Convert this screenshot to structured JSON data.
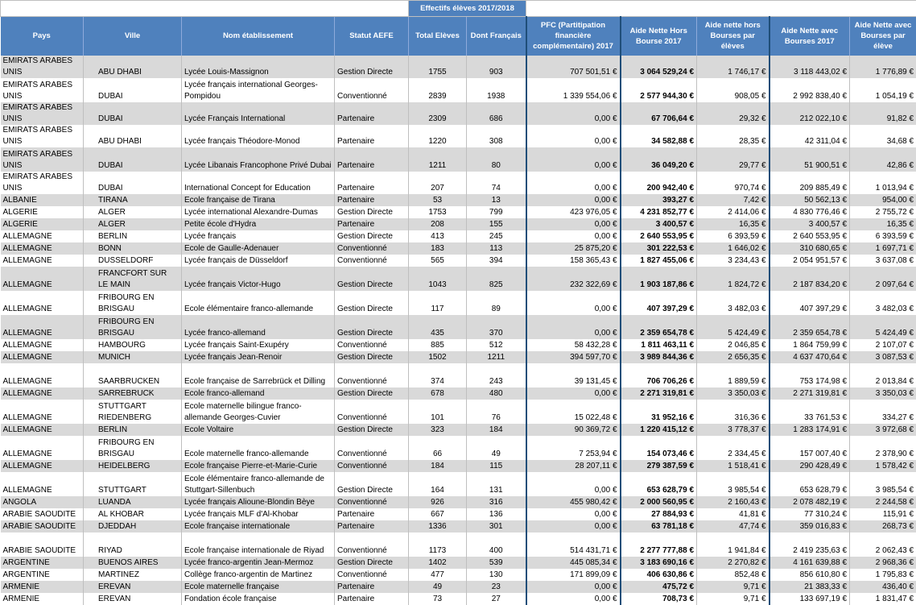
{
  "table": {
    "group_header": "Effectifs élèves 2017/2018",
    "columns": [
      "Pays",
      "Ville",
      "Nom établissement",
      "Statut AEFE",
      "Total Elèves",
      "Dont Français",
      "PFC (Partitipation financière complémentaire) 2017",
      "Aide Nette Hors Bourse 2017",
      "Aide nette hors Bourses par élèves",
      "Aide Nette avec Bourses 2017",
      "Aide Nette avec Bourses par élève"
    ],
    "rows": [
      [
        "EMIRATS ARABES UNIS",
        "ABU DHABI",
        "Lycée Louis-Massignon",
        "Gestion Directe",
        1755,
        903,
        "707 501,51 €",
        "3 064 529,24 €",
        "1 746,17 €",
        "3 118 443,02 €",
        "1 776,89 €"
      ],
      [
        "EMIRATS ARABES UNIS",
        "DUBAI",
        "Lycée français international Georges-Pompidou",
        "Conventionné",
        2839,
        1938,
        "1 339 554,06 €",
        "2 577 944,30 €",
        "908,05 €",
        "2 992 838,40 €",
        "1 054,19 €"
      ],
      [
        "EMIRATS ARABES UNIS",
        "DUBAI",
        "Lycée Français International",
        "Partenaire",
        2309,
        686,
        "0,00 €",
        "67 706,64 €",
        "29,32 €",
        "212 022,10 €",
        "91,82 €"
      ],
      [
        "EMIRATS ARABES UNIS",
        "ABU DHABI",
        "Lycée français Théodore-Monod",
        "Partenaire",
        1220,
        308,
        "0,00 €",
        "34 582,88 €",
        "28,35 €",
        "42 311,04 €",
        "34,68 €"
      ],
      [
        "EMIRATS ARABES UNIS",
        "DUBAI",
        "Lycée Libanais Francophone Privé Dubai",
        "Partenaire",
        1211,
        80,
        "0,00 €",
        "36 049,20 €",
        "29,77 €",
        "51 900,51 €",
        "42,86 €"
      ],
      [
        "EMIRATS ARABES UNIS",
        "DUBAI",
        "International Concept for Education",
        "Partenaire",
        207,
        74,
        "0,00 €",
        "200 942,40 €",
        "970,74 €",
        "209 885,49 €",
        "1 013,94 €"
      ],
      [
        "ALBANIE",
        "TIRANA",
        "Ecole française de Tirana",
        "Partenaire",
        53,
        13,
        "0,00 €",
        "393,27 €",
        "7,42 €",
        "50 562,13 €",
        "954,00 €"
      ],
      [
        "ALGERIE",
        "ALGER",
        "Lycée international Alexandre-Dumas",
        "Gestion Directe",
        1753,
        799,
        "423 976,05 €",
        "4 231 852,77 €",
        "2 414,06 €",
        "4 830 776,46 €",
        "2 755,72 €"
      ],
      [
        "ALGERIE",
        "ALGER",
        "Petite école d'Hydra",
        "Partenaire",
        208,
        155,
        "0,00 €",
        "3 400,57 €",
        "16,35 €",
        "3 400,57 €",
        "16,35 €"
      ],
      [
        "ALLEMAGNE",
        "BERLIN",
        "Lycée français",
        "Gestion Directe",
        413,
        245,
        "0,00 €",
        "2 640 553,95 €",
        "6 393,59 €",
        "2 640 553,95 €",
        "6 393,59 €"
      ],
      [
        "ALLEMAGNE",
        "BONN",
        "Ecole de Gaulle-Adenauer",
        "Conventionné",
        183,
        113,
        "25 875,20 €",
        "301 222,53 €",
        "1 646,02 €",
        "310 680,65 €",
        "1 697,71 €"
      ],
      [
        "ALLEMAGNE",
        "DUSSELDORF",
        "Lycée français de Düsseldorf",
        "Conventionné",
        565,
        394,
        "158 365,43 €",
        "1 827 455,06 €",
        "3 234,43 €",
        "2 054 951,57 €",
        "3 637,08 €"
      ],
      [
        "ALLEMAGNE",
        "FRANCFORT SUR LE MAIN",
        "Lycée français Victor-Hugo",
        "Gestion Directe",
        1043,
        825,
        "232 322,69 €",
        "1 903 187,86 €",
        "1 824,72 €",
        "2 187 834,20 €",
        "2 097,64 €"
      ],
      [
        "ALLEMAGNE",
        "FRIBOURG EN BRISGAU",
        "Ecole élémentaire franco-allemande",
        "Gestion Directe",
        117,
        89,
        "0,00 €",
        "407 397,29 €",
        "3 482,03 €",
        "407 397,29 €",
        "3 482,03 €"
      ],
      [
        "ALLEMAGNE",
        "FRIBOURG EN BRISGAU",
        "Lycée franco-allemand",
        "Gestion Directe",
        435,
        370,
        "0,00 €",
        "2 359 654,78 €",
        "5 424,49 €",
        "2 359 654,78 €",
        "5 424,49 €"
      ],
      [
        "ALLEMAGNE",
        "HAMBOURG",
        "Lycée français Saint-Exupéry",
        "Conventionné",
        885,
        512,
        "58 432,28 €",
        "1 811 463,11 €",
        "2 046,85 €",
        "1 864 759,99 €",
        "2 107,07 €"
      ],
      [
        "ALLEMAGNE",
        "MUNICH",
        "Lycée français Jean-Renoir",
        "Gestion Directe",
        1502,
        1211,
        "394 597,70 €",
        "3 989 844,36 €",
        "2 656,35 €",
        "4 637 470,64 €",
        "3 087,53 €"
      ],
      [
        "ALLEMAGNE",
        "SAARBRUCKEN",
        "Ecole française de Sarrebrück et Dilling",
        "Conventionné",
        374,
        243,
        "39 131,45 €",
        "706 706,26 €",
        "1 889,59 €",
        "753 174,98 €",
        "2 013,84 €"
      ],
      [
        "ALLEMAGNE",
        "SARREBRUCK",
        "Ecole franco-allemand",
        "Gestion Directe",
        678,
        480,
        "0,00 €",
        "2 271 319,81 €",
        "3 350,03 €",
        "2 271 319,81 €",
        "3 350,03 €"
      ],
      [
        "ALLEMAGNE",
        "STUTTGART RIEDENBERG",
        "Ecole maternelle bilingue franco-allemande Georges-Cuvier",
        "Conventionné",
        101,
        76,
        "15 022,48 €",
        "31 952,16 €",
        "316,36 €",
        "33 761,53 €",
        "334,27 €"
      ],
      [
        "ALLEMAGNE",
        "BERLIN",
        "Ecole Voltaire",
        "Gestion Directe",
        323,
        184,
        "90 369,72 €",
        "1 220 415,12 €",
        "3 778,37 €",
        "1 283 174,91 €",
        "3 972,68 €"
      ],
      [
        "ALLEMAGNE",
        "FRIBOURG EN BRISGAU",
        "Ecole maternelle franco-allemande",
        "Conventionné",
        66,
        49,
        "7 253,94 €",
        "154 073,46 €",
        "2 334,45 €",
        "157 007,40 €",
        "2 378,90 €"
      ],
      [
        "ALLEMAGNE",
        "HEIDELBERG",
        "Ecole française Pierre-et-Marie-Curie",
        "Conventionné",
        184,
        115,
        "28 207,11 €",
        "279 387,59 €",
        "1 518,41 €",
        "290 428,49 €",
        "1 578,42 €"
      ],
      [
        "ALLEMAGNE",
        "STUTTGART",
        "Ecole élémentaire franco-allemande de Stuttgart-Sillenbuch",
        "Gestion Directe",
        164,
        131,
        "0,00 €",
        "653 628,79 €",
        "3 985,54 €",
        "653 628,79 €",
        "3 985,54 €"
      ],
      [
        "ANGOLA",
        "LUANDA",
        "Lycée français Alioune-Blondin Bèye",
        "Conventionné",
        926,
        316,
        "455 980,42 €",
        "2 000 560,95 €",
        "2 160,43 €",
        "2 078 482,19 €",
        "2 244,58 €"
      ],
      [
        "ARABIE SAOUDITE",
        "AL KHOBAR",
        "Lycée français MLF d'Al-Khobar",
        "Partenaire",
        667,
        136,
        "0,00 €",
        "27 884,93 €",
        "41,81 €",
        "77 310,24 €",
        "115,91 €"
      ],
      [
        "ARABIE SAOUDITE",
        "DJEDDAH",
        "Ecole française internationale",
        "Partenaire",
        1336,
        301,
        "0,00 €",
        "63 781,18 €",
        "47,74 €",
        "359 016,83 €",
        "268,73 €"
      ],
      [
        "ARABIE SAOUDITE",
        "RIYAD",
        "Ecole française internationale de Riyad",
        "Conventionné",
        1173,
        400,
        "514 431,71 €",
        "2 277 777,88 €",
        "1 941,84 €",
        "2 419 235,63 €",
        "2 062,43 €"
      ],
      [
        "ARGENTINE",
        "BUENOS AIRES",
        "Lycée franco-argentin Jean-Mermoz",
        "Gestion Directe",
        1402,
        539,
        "445 085,34 €",
        "3 183 690,16 €",
        "2 270,82 €",
        "4 161 639,88 €",
        "2 968,36 €"
      ],
      [
        "ARGENTINE",
        "MARTINEZ",
        "Collège franco-argentin de Martinez",
        "Conventionné",
        477,
        130,
        "171 899,09 €",
        "406 630,86 €",
        "852,48 €",
        "856 610,80 €",
        "1 795,83 €"
      ],
      [
        "ARMENIE",
        "EREVAN",
        "Ecole maternelle française",
        "Partenaire",
        49,
        23,
        "0,00 €",
        "475,72 €",
        "9,71 €",
        "21 383,33 €",
        "436,40 €"
      ],
      [
        "ARMENIE",
        "EREVAN",
        "Fondation école française",
        "Partenaire",
        73,
        27,
        "0,00 €",
        "708,73 €",
        "9,71 €",
        "133 697,19 €",
        "1 831,47 €"
      ]
    ]
  }
}
